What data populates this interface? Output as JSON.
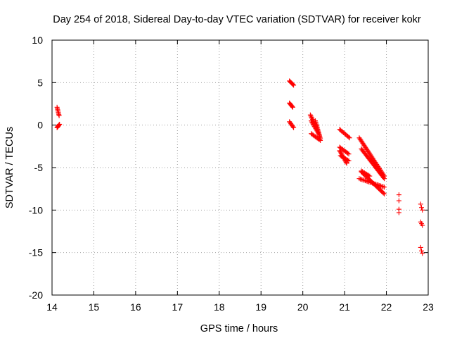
{
  "chart_data": {
    "type": "scatter",
    "title": "Day 254 of 2018, Sidereal Day-to-day VTEC variation (SDTVAR) for receiver kokr",
    "xlabel": "GPS time / hours",
    "ylabel": "SDTVAR / TECUs",
    "xlim": [
      14,
      23
    ],
    "ylim": [
      -20,
      10
    ],
    "x_ticks": [
      "14",
      "15",
      "16",
      "17",
      "18",
      "19",
      "20",
      "21",
      "22",
      "23"
    ],
    "y_ticks": [
      "-20",
      "-15",
      "-10",
      "-5",
      "0",
      "5",
      "10"
    ],
    "grid": true,
    "marker": "plus",
    "color": "#ff0000",
    "segments": [
      {
        "x0": 14.12,
        "x1": 14.17,
        "y0": 2.1,
        "y1": 1.1
      },
      {
        "x0": 14.12,
        "x1": 14.18,
        "y0": -0.3,
        "y1": 0.1
      },
      {
        "x0": 19.68,
        "x1": 19.78,
        "y0": 5.2,
        "y1": 4.7
      },
      {
        "x0": 19.68,
        "x1": 19.76,
        "y0": 2.6,
        "y1": 2.1
      },
      {
        "x0": 19.68,
        "x1": 19.78,
        "y0": 0.4,
        "y1": -0.3
      },
      {
        "x0": 20.18,
        "x1": 20.35,
        "y0": 1.2,
        "y1": -0.5
      },
      {
        "x0": 20.2,
        "x1": 20.4,
        "y0": 0.5,
        "y1": -1.2
      },
      {
        "x0": 20.2,
        "x1": 20.42,
        "y0": -1.0,
        "y1": -1.8
      },
      {
        "x0": 20.3,
        "x1": 20.42,
        "y0": 0.5,
        "y1": -1.6
      },
      {
        "x0": 20.88,
        "x1": 21.12,
        "y0": -0.5,
        "y1": -1.5
      },
      {
        "x0": 20.88,
        "x1": 21.1,
        "y0": -2.6,
        "y1": -3.4
      },
      {
        "x0": 20.88,
        "x1": 21.05,
        "y0": -3.0,
        "y1": -4.5
      },
      {
        "x0": 20.9,
        "x1": 21.1,
        "y0": -3.6,
        "y1": -4.2
      },
      {
        "x0": 21.35,
        "x1": 21.95,
        "y0": -1.5,
        "y1": -6.0
      },
      {
        "x0": 21.4,
        "x1": 21.95,
        "y0": -2.8,
        "y1": -6.3
      },
      {
        "x0": 21.4,
        "x1": 21.95,
        "y0": -5.5,
        "y1": -8.1
      },
      {
        "x0": 21.35,
        "x1": 21.95,
        "y0": -6.3,
        "y1": -7.3
      },
      {
        "x0": 21.4,
        "x1": 21.6,
        "y0": -5.4,
        "y1": -6.0
      }
    ],
    "points": [
      {
        "x": 22.3,
        "y": -8.2
      },
      {
        "x": 22.3,
        "y": -8.9
      },
      {
        "x": 22.3,
        "y": -9.9
      },
      {
        "x": 22.3,
        "y": -10.3
      },
      {
        "x": 22.82,
        "y": -9.3
      },
      {
        "x": 22.84,
        "y": -9.7
      },
      {
        "x": 22.86,
        "y": -10.0
      },
      {
        "x": 22.82,
        "y": -11.4
      },
      {
        "x": 22.84,
        "y": -11.6
      },
      {
        "x": 22.86,
        "y": -11.8
      },
      {
        "x": 22.82,
        "y": -14.4
      },
      {
        "x": 22.84,
        "y": -14.8
      },
      {
        "x": 22.86,
        "y": -15.1
      }
    ]
  }
}
